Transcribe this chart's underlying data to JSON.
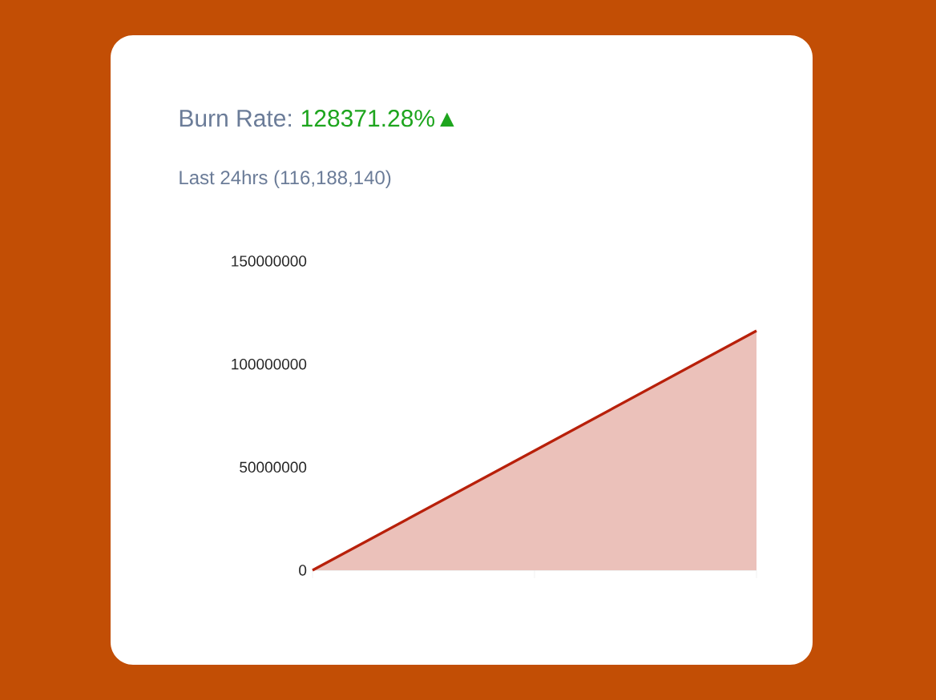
{
  "chart_data": {
    "type": "area",
    "title": "Burn Rate:",
    "subtitle": "Last 24hrs (116,188,140)",
    "annotations": [
      "128371.28%▲"
    ],
    "categories": [
      null,
      null,
      null
    ],
    "series": [
      {
        "color": "#b8200a",
        "values": [
          0,
          58000000,
          116188140
        ]
      }
    ],
    "ylim": [
      0,
      150000000
    ],
    "yticks": [
      0,
      50000000,
      100000000,
      150000000
    ],
    "tick_labels": "y"
  }
}
